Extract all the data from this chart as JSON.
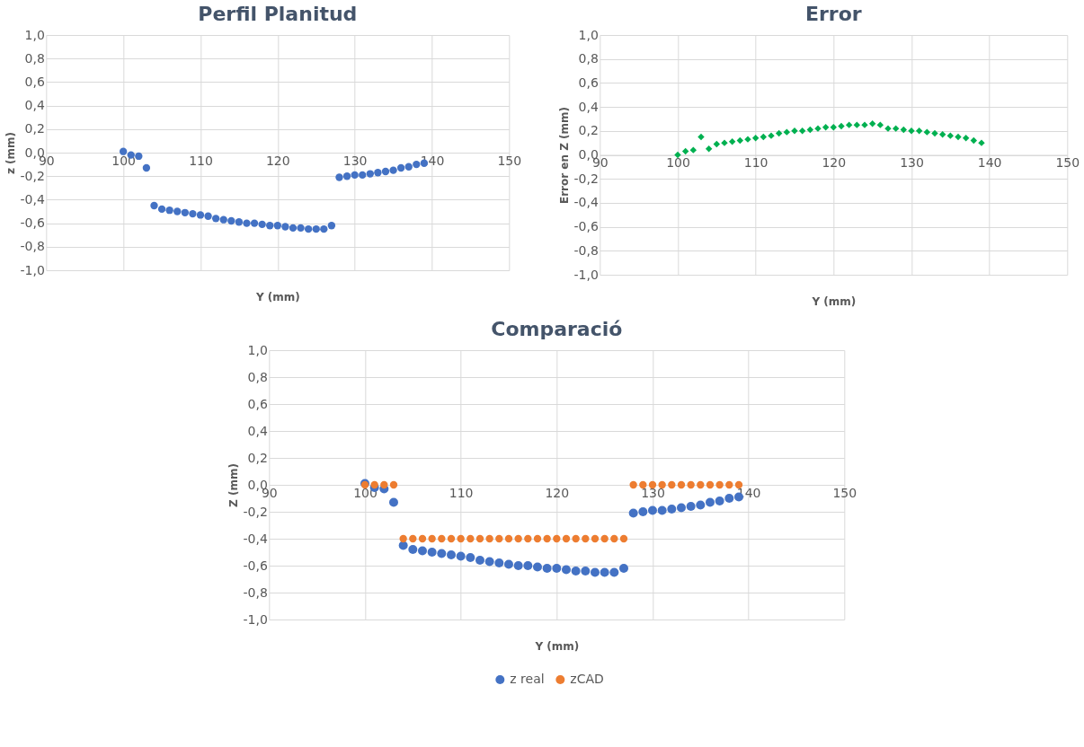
{
  "chart_data": [
    {
      "type": "scatter",
      "title": "Perfil Planitud",
      "xlabel": "Y (mm)",
      "ylabel": "z (mm)",
      "marker": "circle",
      "grid": true,
      "x": [
        100,
        101,
        102,
        103,
        104,
        105,
        106,
        107,
        108,
        109,
        110,
        111,
        112,
        113,
        114,
        115,
        116,
        117,
        118,
        119,
        120,
        121,
        122,
        123,
        124,
        125,
        126,
        127,
        128,
        129,
        130,
        131,
        132,
        133,
        134,
        135,
        136,
        137,
        138,
        139
      ],
      "series": [
        {
          "color": "#4472c4",
          "values": [
            0.01,
            -0.02,
            -0.03,
            -0.13,
            -0.45,
            -0.48,
            -0.49,
            -0.5,
            -0.51,
            -0.52,
            -0.53,
            -0.54,
            -0.56,
            -0.57,
            -0.58,
            -0.59,
            -0.6,
            -0.6,
            -0.61,
            -0.62,
            -0.62,
            -0.63,
            -0.64,
            -0.64,
            -0.65,
            -0.65,
            -0.65,
            -0.62,
            -0.21,
            -0.2,
            -0.19,
            -0.19,
            -0.18,
            -0.17,
            -0.16,
            -0.15,
            -0.13,
            -0.12,
            -0.1,
            -0.09
          ]
        }
      ],
      "xlim": [
        90,
        150
      ],
      "xticks": [
        90,
        100,
        110,
        120,
        130,
        140,
        150
      ],
      "ylim": [
        -1,
        1
      ],
      "yticks": [
        {
          "value": -1,
          "label": "-1,0"
        },
        {
          "value": -0.8,
          "label": "-0,8"
        },
        {
          "value": -0.6,
          "label": "-0,6"
        },
        {
          "value": -0.4,
          "label": "-0,4"
        },
        {
          "value": -0.2,
          "label": "-0,2"
        },
        {
          "value": 0,
          "label": "0,0"
        },
        {
          "value": 0.2,
          "label": "0,2"
        },
        {
          "value": 0.4,
          "label": "0,4"
        },
        {
          "value": 0.6,
          "label": "0,6"
        },
        {
          "value": 0.8,
          "label": "0,8"
        },
        {
          "value": 1,
          "label": "1,0"
        }
      ]
    },
    {
      "type": "scatter",
      "title": "Error",
      "xlabel": "Y (mm)",
      "ylabel": "Error en Z (mm)",
      "marker": "diamond",
      "grid": true,
      "x": [
        100,
        101,
        102,
        103,
        104,
        105,
        106,
        107,
        108,
        109,
        110,
        111,
        112,
        113,
        114,
        115,
        116,
        117,
        118,
        119,
        120,
        121,
        122,
        123,
        124,
        125,
        126,
        127,
        128,
        129,
        130,
        131,
        132,
        133,
        134,
        135,
        136,
        137,
        138,
        139
      ],
      "series": [
        {
          "color": "#00b050",
          "values": [
            0,
            0.03,
            0.04,
            0.15,
            0.05,
            0.09,
            0.1,
            0.11,
            0.12,
            0.13,
            0.14,
            0.15,
            0.16,
            0.18,
            0.19,
            0.2,
            0.2,
            0.21,
            0.22,
            0.23,
            0.23,
            0.24,
            0.25,
            0.25,
            0.25,
            0.26,
            0.25,
            0.22,
            0.22,
            0.21,
            0.2,
            0.2,
            0.19,
            0.18,
            0.17,
            0.16,
            0.15,
            0.14,
            0.12,
            0.1
          ]
        }
      ],
      "xlim": [
        90,
        150
      ],
      "xticks": [
        90,
        100,
        110,
        120,
        130,
        140,
        150
      ],
      "ylim": [
        -1,
        1
      ],
      "yticks": [
        {
          "value": -1,
          "label": "-1,0"
        },
        {
          "value": -0.8,
          "label": "-0,8"
        },
        {
          "value": -0.6,
          "label": "-0,6"
        },
        {
          "value": -0.4,
          "label": "-0,4"
        },
        {
          "value": -0.2,
          "label": "-0,2"
        },
        {
          "value": 0,
          "label": "0,0"
        },
        {
          "value": 0.2,
          "label": "0,2"
        },
        {
          "value": 0.4,
          "label": "0,4"
        },
        {
          "value": 0.6,
          "label": "0,6"
        },
        {
          "value": 0.8,
          "label": "0,8"
        },
        {
          "value": 1,
          "label": "1,0"
        }
      ]
    },
    {
      "type": "scatter",
      "title": "Comparació",
      "xlabel": "Y (mm)",
      "ylabel": "Z (mm)",
      "marker": "circle",
      "grid": true,
      "legend": "bottom",
      "x": [
        100,
        101,
        102,
        103,
        104,
        105,
        106,
        107,
        108,
        109,
        110,
        111,
        112,
        113,
        114,
        115,
        116,
        117,
        118,
        119,
        120,
        121,
        122,
        123,
        124,
        125,
        126,
        127,
        128,
        129,
        130,
        131,
        132,
        133,
        134,
        135,
        136,
        137,
        138,
        139
      ],
      "series": [
        {
          "name": "z real",
          "color": "#4472c4",
          "values": [
            0.01,
            -0.02,
            -0.03,
            -0.13,
            -0.45,
            -0.48,
            -0.49,
            -0.5,
            -0.51,
            -0.52,
            -0.53,
            -0.54,
            -0.56,
            -0.57,
            -0.58,
            -0.59,
            -0.6,
            -0.6,
            -0.61,
            -0.62,
            -0.62,
            -0.63,
            -0.64,
            -0.64,
            -0.65,
            -0.65,
            -0.65,
            -0.62,
            -0.21,
            -0.2,
            -0.19,
            -0.19,
            -0.18,
            -0.17,
            -0.16,
            -0.15,
            -0.13,
            -0.12,
            -0.1,
            -0.09
          ]
        },
        {
          "name": "zCAD",
          "color": "#ed7d31",
          "values": [
            0,
            0,
            0,
            0,
            -0.4,
            -0.4,
            -0.4,
            -0.4,
            -0.4,
            -0.4,
            -0.4,
            -0.4,
            -0.4,
            -0.4,
            -0.4,
            -0.4,
            -0.4,
            -0.4,
            -0.4,
            -0.4,
            -0.4,
            -0.4,
            -0.4,
            -0.4,
            -0.4,
            -0.4,
            -0.4,
            -0.4,
            0,
            0,
            0,
            0,
            0,
            0,
            0,
            0,
            0,
            0,
            0,
            0
          ]
        }
      ],
      "xlim": [
        90,
        150
      ],
      "xticks": [
        90,
        100,
        110,
        120,
        130,
        140,
        150
      ],
      "ylim": [
        -1,
        1
      ],
      "yticks": [
        {
          "value": -1,
          "label": "-1,0"
        },
        {
          "value": -0.8,
          "label": "-0,8"
        },
        {
          "value": -0.6,
          "label": "-0,6"
        },
        {
          "value": -0.4,
          "label": "-0,4"
        },
        {
          "value": -0.2,
          "label": "-0,2"
        },
        {
          "value": 0,
          "label": "0,0"
        },
        {
          "value": 0.2,
          "label": "0,2"
        },
        {
          "value": 0.4,
          "label": "0,4"
        },
        {
          "value": 0.6,
          "label": "0,6"
        },
        {
          "value": 0.8,
          "label": "0,8"
        },
        {
          "value": 1,
          "label": "1,0"
        }
      ]
    }
  ]
}
